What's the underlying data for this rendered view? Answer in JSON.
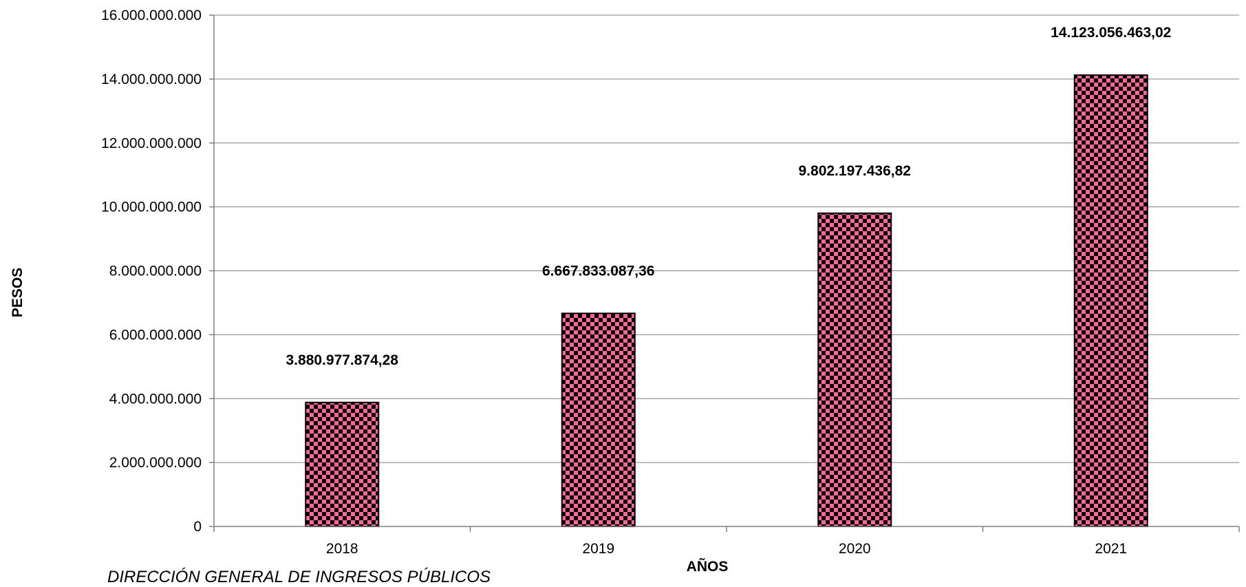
{
  "chart_data": {
    "type": "bar",
    "categories": [
      "2018",
      "2019",
      "2020",
      "2021"
    ],
    "values": [
      3880977874.28,
      6667833087.36,
      9802197436.82,
      14123056463.02
    ],
    "data_labels": [
      "3.880.977.874,28",
      "6.667.833.087,36",
      "9.802.197.436,82",
      "14.123.056.463,02"
    ],
    "xlabel": "AÑOS",
    "ylabel": "PESOS",
    "ylim": [
      0,
      16000000000
    ],
    "y_ticks": [
      0,
      2000000000,
      4000000000,
      6000000000,
      8000000000,
      10000000000,
      12000000000,
      14000000000,
      16000000000
    ],
    "y_tick_labels": [
      "0",
      "2.000.000.000",
      "4.000.000.000",
      "6.000.000.000",
      "8.000.000.000",
      "10.000.000.000",
      "12.000.000.000",
      "14.000.000.000",
      "16.000.000.000"
    ],
    "grid": true,
    "legend": "none",
    "bar_color": "#ff6699",
    "bar_pattern_color": "#000000"
  },
  "source_note": "DIRECCIÓN GENERAL DE INGRESOS PÚBLICOS"
}
